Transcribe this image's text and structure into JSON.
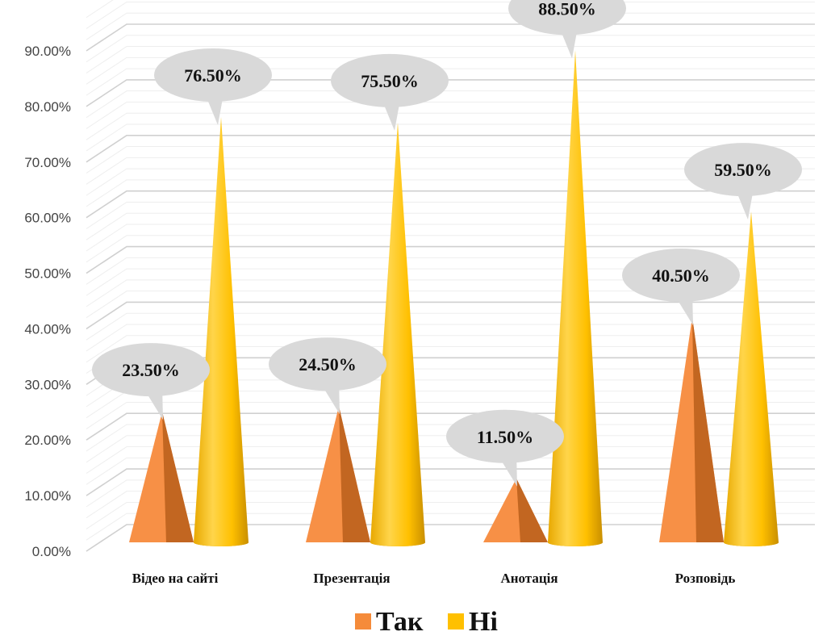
{
  "chart_data": {
    "type": "bar",
    "shape": "cone",
    "categories": [
      "Відео на сайті",
      "Презентація",
      "Анотація",
      "Розповідь"
    ],
    "series": [
      {
        "name": "Так",
        "color": "#F58B3A",
        "values": [
          23.5,
          24.5,
          11.5,
          40.5
        ],
        "labels": [
          "23.50%",
          "24.50%",
          "11.50%",
          "40.50%"
        ]
      },
      {
        "name": "Ні",
        "color": "#FFC000",
        "values": [
          76.5,
          75.5,
          88.5,
          59.5
        ],
        "labels": [
          "76.50%",
          "75.50%",
          "88.50%",
          "59.50%"
        ]
      }
    ],
    "yticks": [
      "0.00%",
      "10.00%",
      "20.00%",
      "30.00%",
      "40.00%",
      "50.00%",
      "60.00%",
      "70.00%",
      "80.00%",
      "90.00%"
    ],
    "ylim": [
      0,
      90
    ],
    "grid": true,
    "legend": "bottom",
    "data_label_style": "callout-bubble",
    "callout_color": "#D9D9D9"
  }
}
